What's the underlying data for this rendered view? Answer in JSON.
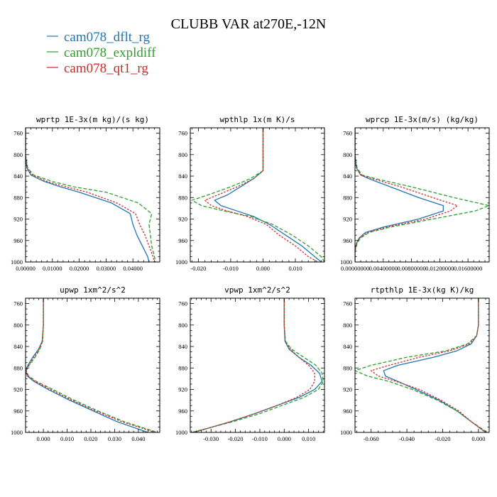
{
  "figure": {
    "title": "CLUBB VAR at270E,-12N"
  },
  "legend": [
    {
      "name": "cam078_dflt_rg",
      "color": "#1f77b4"
    },
    {
      "name": "cam078_expldiff",
      "color": "#2ca02c"
    },
    {
      "name": "cam078_qt1_rg",
      "color": "#d62728"
    }
  ],
  "chart_data": [
    {
      "type": "line",
      "title": "wprtp  1E-3x(m kg)/(s kg)",
      "xlim": [
        0,
        0.05
      ],
      "ylim": [
        1000,
        750
      ],
      "xticks": [
        0,
        0.01,
        0.02,
        0.03,
        0.04
      ],
      "xtick_labels": [
        "0.00000",
        "0.01000",
        "0.02000",
        "0.03000",
        "0.04000"
      ],
      "yticks": [
        760,
        800,
        840,
        880,
        920,
        960,
        1000
      ],
      "ytick_labels": [
        "760",
        "800",
        "840",
        "880",
        "920",
        "960",
        "1000"
      ],
      "y": [
        750,
        800,
        825,
        838,
        843,
        850,
        860,
        870,
        890,
        910,
        930,
        950,
        970,
        990,
        1000
      ],
      "series": [
        {
          "name": "cam078_dflt_rg",
          "values": [
            0,
            0,
            0.0005,
            0.002,
            0.004,
            0.007,
            0.013,
            0.02,
            0.032,
            0.039,
            0.04,
            0.0415,
            0.0435,
            0.0455,
            0.046
          ]
        },
        {
          "name": "cam078_expldiff",
          "values": [
            0,
            0,
            0.0008,
            0.003,
            0.006,
            0.01,
            0.018,
            0.03,
            0.042,
            0.047,
            0.046,
            0.0465,
            0.047,
            0.048,
            0.0485
          ]
        },
        {
          "name": "cam078_qt1_rg",
          "values": [
            0,
            0,
            0.0006,
            0.0025,
            0.005,
            0.008,
            0.015,
            0.023,
            0.034,
            0.041,
            0.0425,
            0.0445,
            0.046,
            0.0475,
            0.048
          ]
        }
      ]
    },
    {
      "type": "line",
      "title": "wpthlp  1x(m K)/s",
      "xlim": [
        -0.0225,
        0.019
      ],
      "ylim": [
        1000,
        750
      ],
      "xticks": [
        -0.02,
        -0.01,
        0,
        0.01
      ],
      "xtick_labels": [
        "-0.020",
        "-0.010",
        "0.000",
        "0.010"
      ],
      "yticks": [
        760,
        800,
        840,
        880,
        920,
        960,
        1000
      ],
      "ytick_labels": [
        "760",
        "800",
        "840",
        "880",
        "920",
        "960",
        "1000"
      ],
      "y": [
        750,
        800,
        830,
        845,
        860,
        875,
        885,
        895,
        905,
        915,
        930,
        950,
        970,
        990,
        1000
      ],
      "series": [
        {
          "name": "cam078_dflt_rg",
          "values": [
            0,
            0,
            0,
            -0.003,
            -0.007,
            -0.011,
            -0.015,
            -0.013,
            -0.008,
            -0.003,
            0.002,
            0.007,
            0.012,
            0.016,
            0.018
          ]
        },
        {
          "name": "cam078_expldiff",
          "values": [
            0,
            0,
            0,
            -0.004,
            -0.01,
            -0.017,
            -0.022,
            -0.019,
            -0.012,
            -0.004,
            0.003,
            0.009,
            0.014,
            0.018,
            0.019
          ]
        },
        {
          "name": "cam078_qt1_rg",
          "values": [
            0,
            0,
            0,
            -0.003,
            -0.008,
            -0.014,
            -0.018,
            -0.016,
            -0.011,
            -0.005,
            0.001,
            0.005,
            0.01,
            0.014,
            0.017
          ]
        }
      ]
    },
    {
      "type": "line",
      "title": "wprcp  1E-3x(m/s) (kg/kg)",
      "xlim": [
        0,
        0.019
      ],
      "ylim": [
        1000,
        750
      ],
      "xticks": [
        0,
        0.004,
        0.008,
        0.012,
        0.016
      ],
      "xtick_labels": [
        "0.00000000",
        "0.00400000",
        "0.00800000",
        "0.01200000",
        "0.01600000"
      ],
      "yticks": [
        760,
        800,
        840,
        880,
        920,
        960,
        1000
      ],
      "ytick_labels": [
        "760",
        "800",
        "840",
        "880",
        "920",
        "960",
        "1000"
      ],
      "y": [
        750,
        800,
        825,
        838,
        845,
        860,
        880,
        895,
        905,
        920,
        935,
        945,
        955,
        965,
        980,
        1000
      ],
      "series": [
        {
          "name": "cam078_dflt_rg",
          "values": [
            0,
            0,
            0.0002,
            0.0008,
            0.002,
            0.005,
            0.009,
            0.0125,
            0.0125,
            0.009,
            0.004,
            0.0015,
            0.0006,
            0.0002,
            0,
            0
          ]
        },
        {
          "name": "cam078_expldiff",
          "values": [
            0,
            0,
            0.0003,
            0.001,
            0.003,
            0.008,
            0.014,
            0.019,
            0.017,
            0.011,
            0.005,
            0.002,
            0.0008,
            0.0003,
            0,
            0
          ]
        },
        {
          "name": "cam078_qt1_rg",
          "values": [
            0,
            0,
            0.0002,
            0.0009,
            0.0025,
            0.0065,
            0.011,
            0.0145,
            0.0135,
            0.01,
            0.0045,
            0.0018,
            0.0007,
            0.0002,
            0,
            0
          ]
        }
      ]
    },
    {
      "type": "line",
      "title": "upwp  1xm^2/s^2",
      "xlim": [
        -0.0075,
        0.049
      ],
      "ylim": [
        1000,
        750
      ],
      "xticks": [
        0,
        0.01,
        0.02,
        0.03,
        0.04
      ],
      "xtick_labels": [
        "0.000",
        "0.010",
        "0.020",
        "0.030",
        "0.040"
      ],
      "yticks": [
        760,
        800,
        840,
        880,
        920,
        960,
        1000
      ],
      "ytick_labels": [
        "760",
        "800",
        "840",
        "880",
        "920",
        "960",
        "1000"
      ],
      "y": [
        750,
        800,
        830,
        845,
        860,
        875,
        885,
        895,
        905,
        920,
        940,
        960,
        980,
        1000
      ],
      "series": [
        {
          "name": "cam078_dflt_rg",
          "values": [
            0,
            0,
            -0.0005,
            -0.002,
            -0.0045,
            -0.0065,
            -0.0075,
            -0.0068,
            -0.004,
            0.002,
            0.011,
            0.021,
            0.031,
            0.044
          ]
        },
        {
          "name": "cam078_expldiff",
          "values": [
            0,
            0,
            -0.0003,
            -0.0015,
            -0.0035,
            -0.006,
            -0.0072,
            -0.0062,
            -0.003,
            0.004,
            0.013,
            0.023,
            0.034,
            0.048
          ]
        },
        {
          "name": "cam078_qt1_rg",
          "values": [
            0,
            0,
            -0.0004,
            -0.0018,
            -0.004,
            -0.0062,
            -0.0073,
            -0.0065,
            -0.0035,
            0.003,
            0.012,
            0.022,
            0.033,
            0.047
          ]
        }
      ]
    },
    {
      "type": "line",
      "title": "vpwp  1xm^2/s^2",
      "xlim": [
        -0.0385,
        0.0165
      ],
      "ylim": [
        1000,
        750
      ],
      "xticks": [
        -0.03,
        -0.02,
        -0.01,
        0,
        0.01
      ],
      "xtick_labels": [
        "-0.030",
        "-0.020",
        "-0.010",
        "0.000",
        "0.010"
      ],
      "yticks": [
        760,
        800,
        840,
        880,
        920,
        960,
        1000
      ],
      "ytick_labels": [
        "760",
        "800",
        "840",
        "880",
        "920",
        "960",
        "1000"
      ],
      "y": [
        750,
        800,
        830,
        845,
        860,
        875,
        890,
        905,
        920,
        935,
        950,
        965,
        980,
        1000
      ],
      "series": [
        {
          "name": "cam078_dflt_rg",
          "values": [
            0,
            0,
            0.0003,
            0.002,
            0.006,
            0.011,
            0.0145,
            0.0155,
            0.0125,
            0.006,
            -0.003,
            -0.012,
            -0.022,
            -0.037
          ]
        },
        {
          "name": "cam078_expldiff",
          "values": [
            0,
            0,
            0.0005,
            0.003,
            0.008,
            0.013,
            0.0155,
            0.016,
            0.014,
            0.008,
            -0.001,
            -0.01,
            -0.021,
            -0.038
          ]
        },
        {
          "name": "cam078_qt1_rg",
          "values": [
            0,
            0,
            0.0004,
            0.0025,
            0.006,
            0.01,
            0.0125,
            0.0125,
            0.0105,
            0.005,
            -0.003,
            -0.012,
            -0.022,
            -0.037
          ]
        }
      ]
    },
    {
      "type": "line",
      "title": "rtpthlp  1E-3x(kg K)/kg",
      "xlim": [
        -0.069,
        0.006
      ],
      "ylim": [
        1000,
        750
      ],
      "xticks": [
        -0.06,
        -0.04,
        -0.02,
        0
      ],
      "xtick_labels": [
        "-0.060",
        "-0.040",
        "-0.020",
        "0.000"
      ],
      "yticks": [
        760,
        800,
        840,
        880,
        920,
        960,
        1000
      ],
      "ytick_labels": [
        "760",
        "800",
        "840",
        "880",
        "920",
        "960",
        "1000"
      ],
      "y": [
        750,
        800,
        820,
        835,
        848,
        860,
        875,
        885,
        895,
        905,
        920,
        940,
        960,
        980,
        1000
      ],
      "series": [
        {
          "name": "cam078_dflt_rg",
          "values": [
            0,
            0,
            -0.001,
            -0.004,
            -0.012,
            -0.025,
            -0.045,
            -0.053,
            -0.052,
            -0.045,
            -0.035,
            -0.022,
            -0.012,
            -0.004,
            0.004
          ]
        },
        {
          "name": "cam078_expldiff",
          "values": [
            0,
            0,
            -0.001,
            -0.006,
            -0.018,
            -0.04,
            -0.06,
            -0.069,
            -0.062,
            -0.05,
            -0.037,
            -0.023,
            -0.012,
            -0.004,
            0.005
          ]
        },
        {
          "name": "cam078_qt1_rg",
          "values": [
            0,
            0,
            -0.001,
            -0.005,
            -0.016,
            -0.033,
            -0.05,
            -0.06,
            -0.056,
            -0.046,
            -0.033,
            -0.021,
            -0.011,
            -0.004,
            0.004
          ]
        }
      ]
    }
  ]
}
